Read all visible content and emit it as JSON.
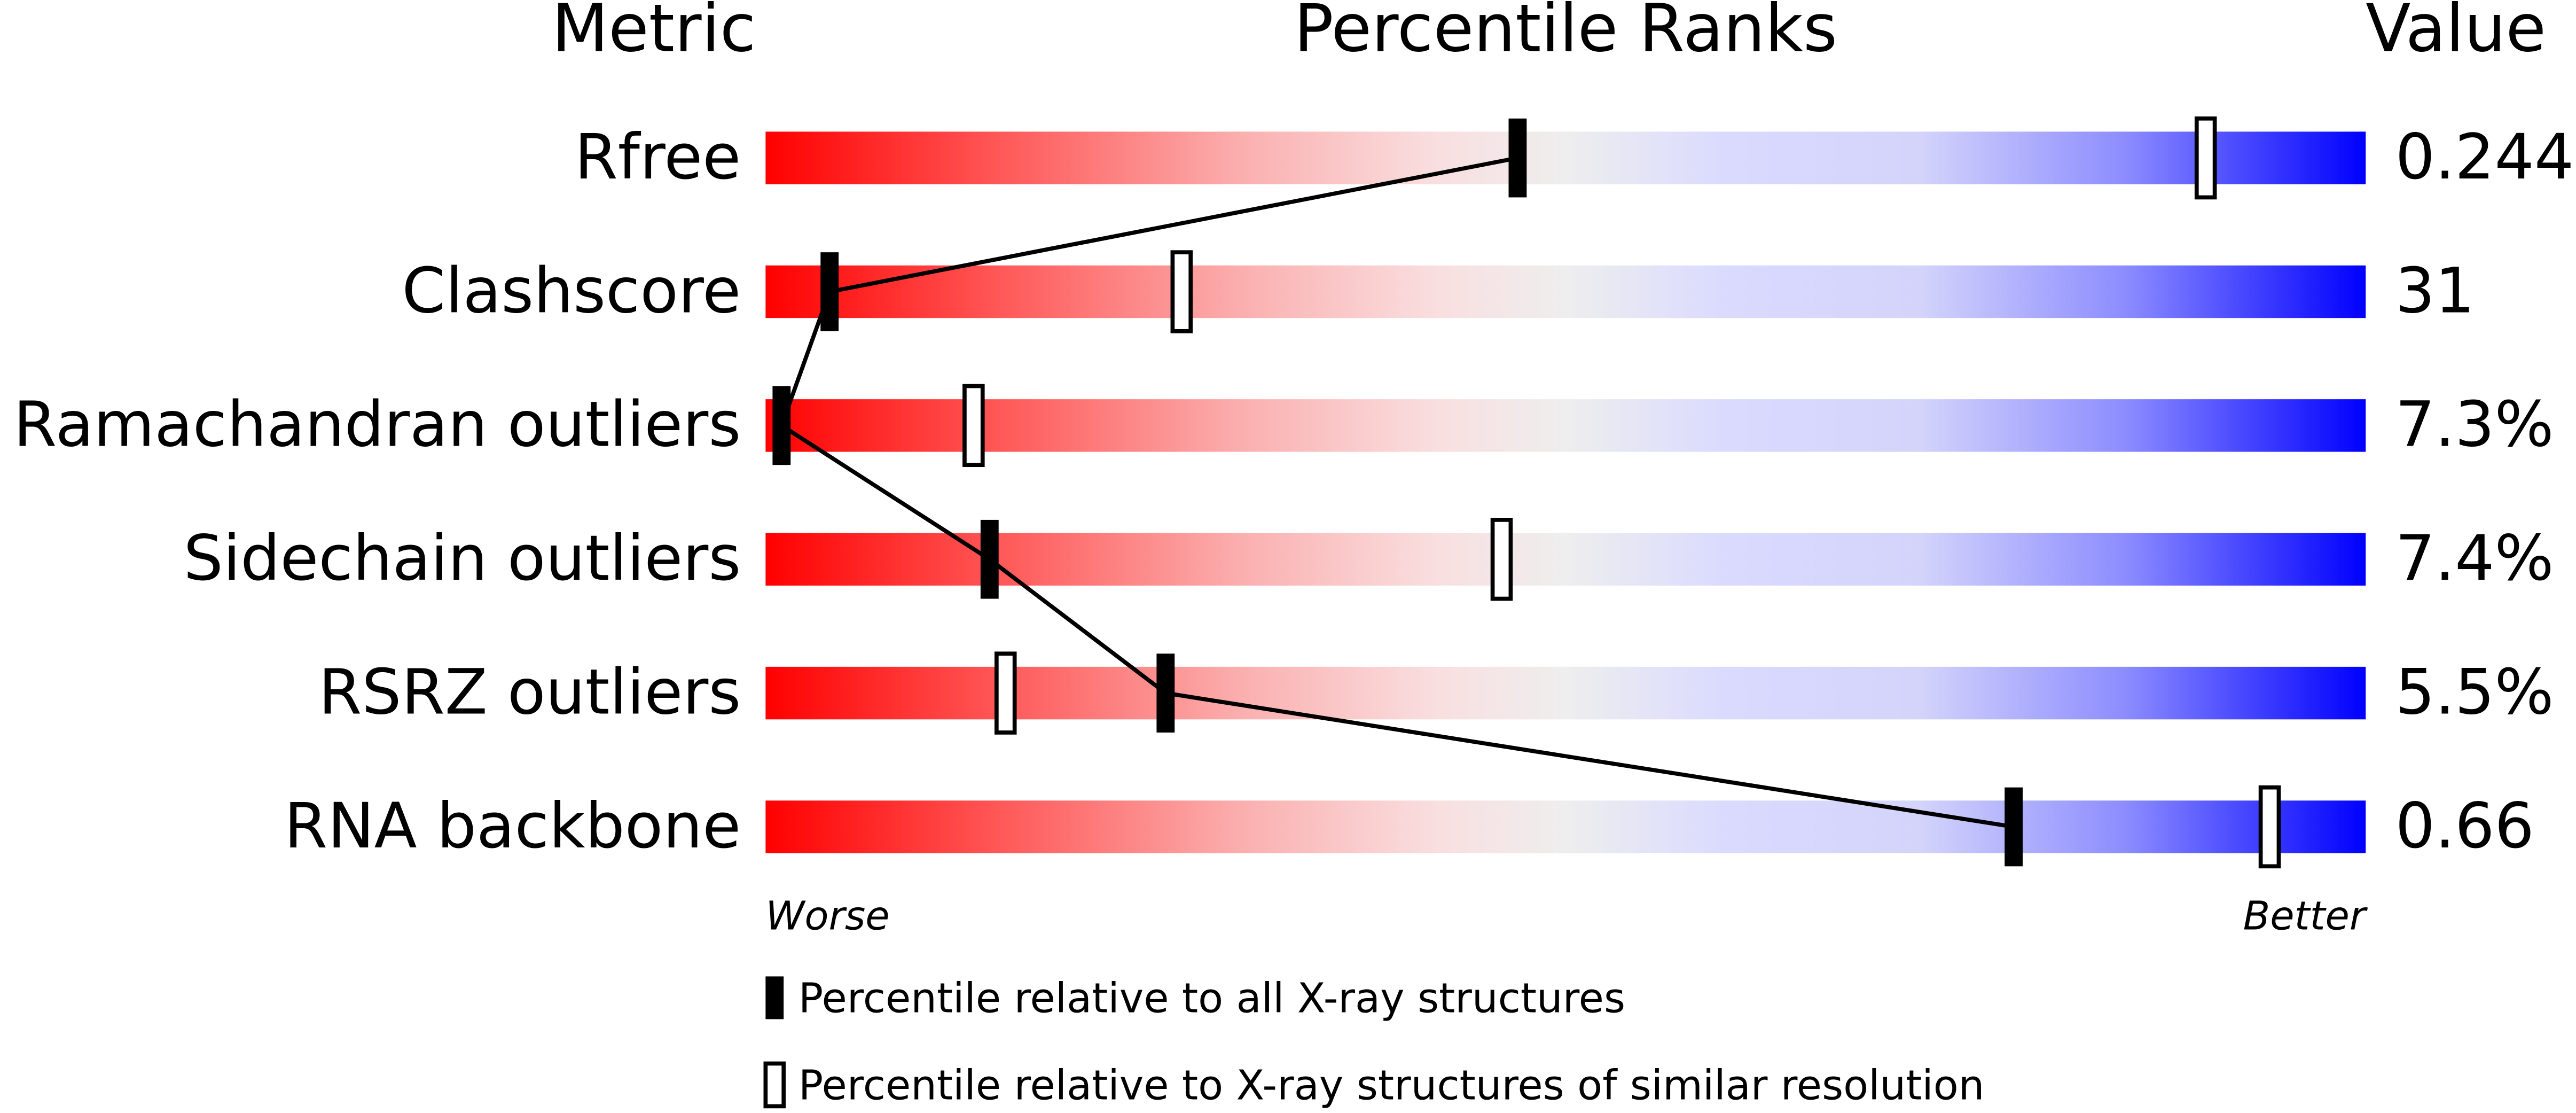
{
  "chart_data": {
    "type": "percentile-slider",
    "metric_header": "Metric",
    "title": "Percentile Ranks",
    "value_header": "Value",
    "categories": [
      "Rfree",
      "Clashscore",
      "Ramachandran outliers",
      "Sidechain outliers",
      "RSRZ outliers",
      "RNA backbone"
    ],
    "value_labels": [
      "0.244",
      "31",
      "7.3%",
      "7.4%",
      "5.5%",
      "0.66"
    ],
    "series": [
      {
        "name": "Percentile relative to all X-ray structures",
        "color": "#000000",
        "values": [
          47,
          4,
          1,
          14,
          25,
          78
        ]
      },
      {
        "name": "Percentile relative to X-ray structures of similar resolution",
        "color": "#ffffff",
        "values": [
          90,
          26,
          13,
          46,
          15,
          94
        ]
      }
    ],
    "xlim": [
      0,
      100
    ],
    "worse_label": "Worse",
    "better_label": "Better"
  }
}
